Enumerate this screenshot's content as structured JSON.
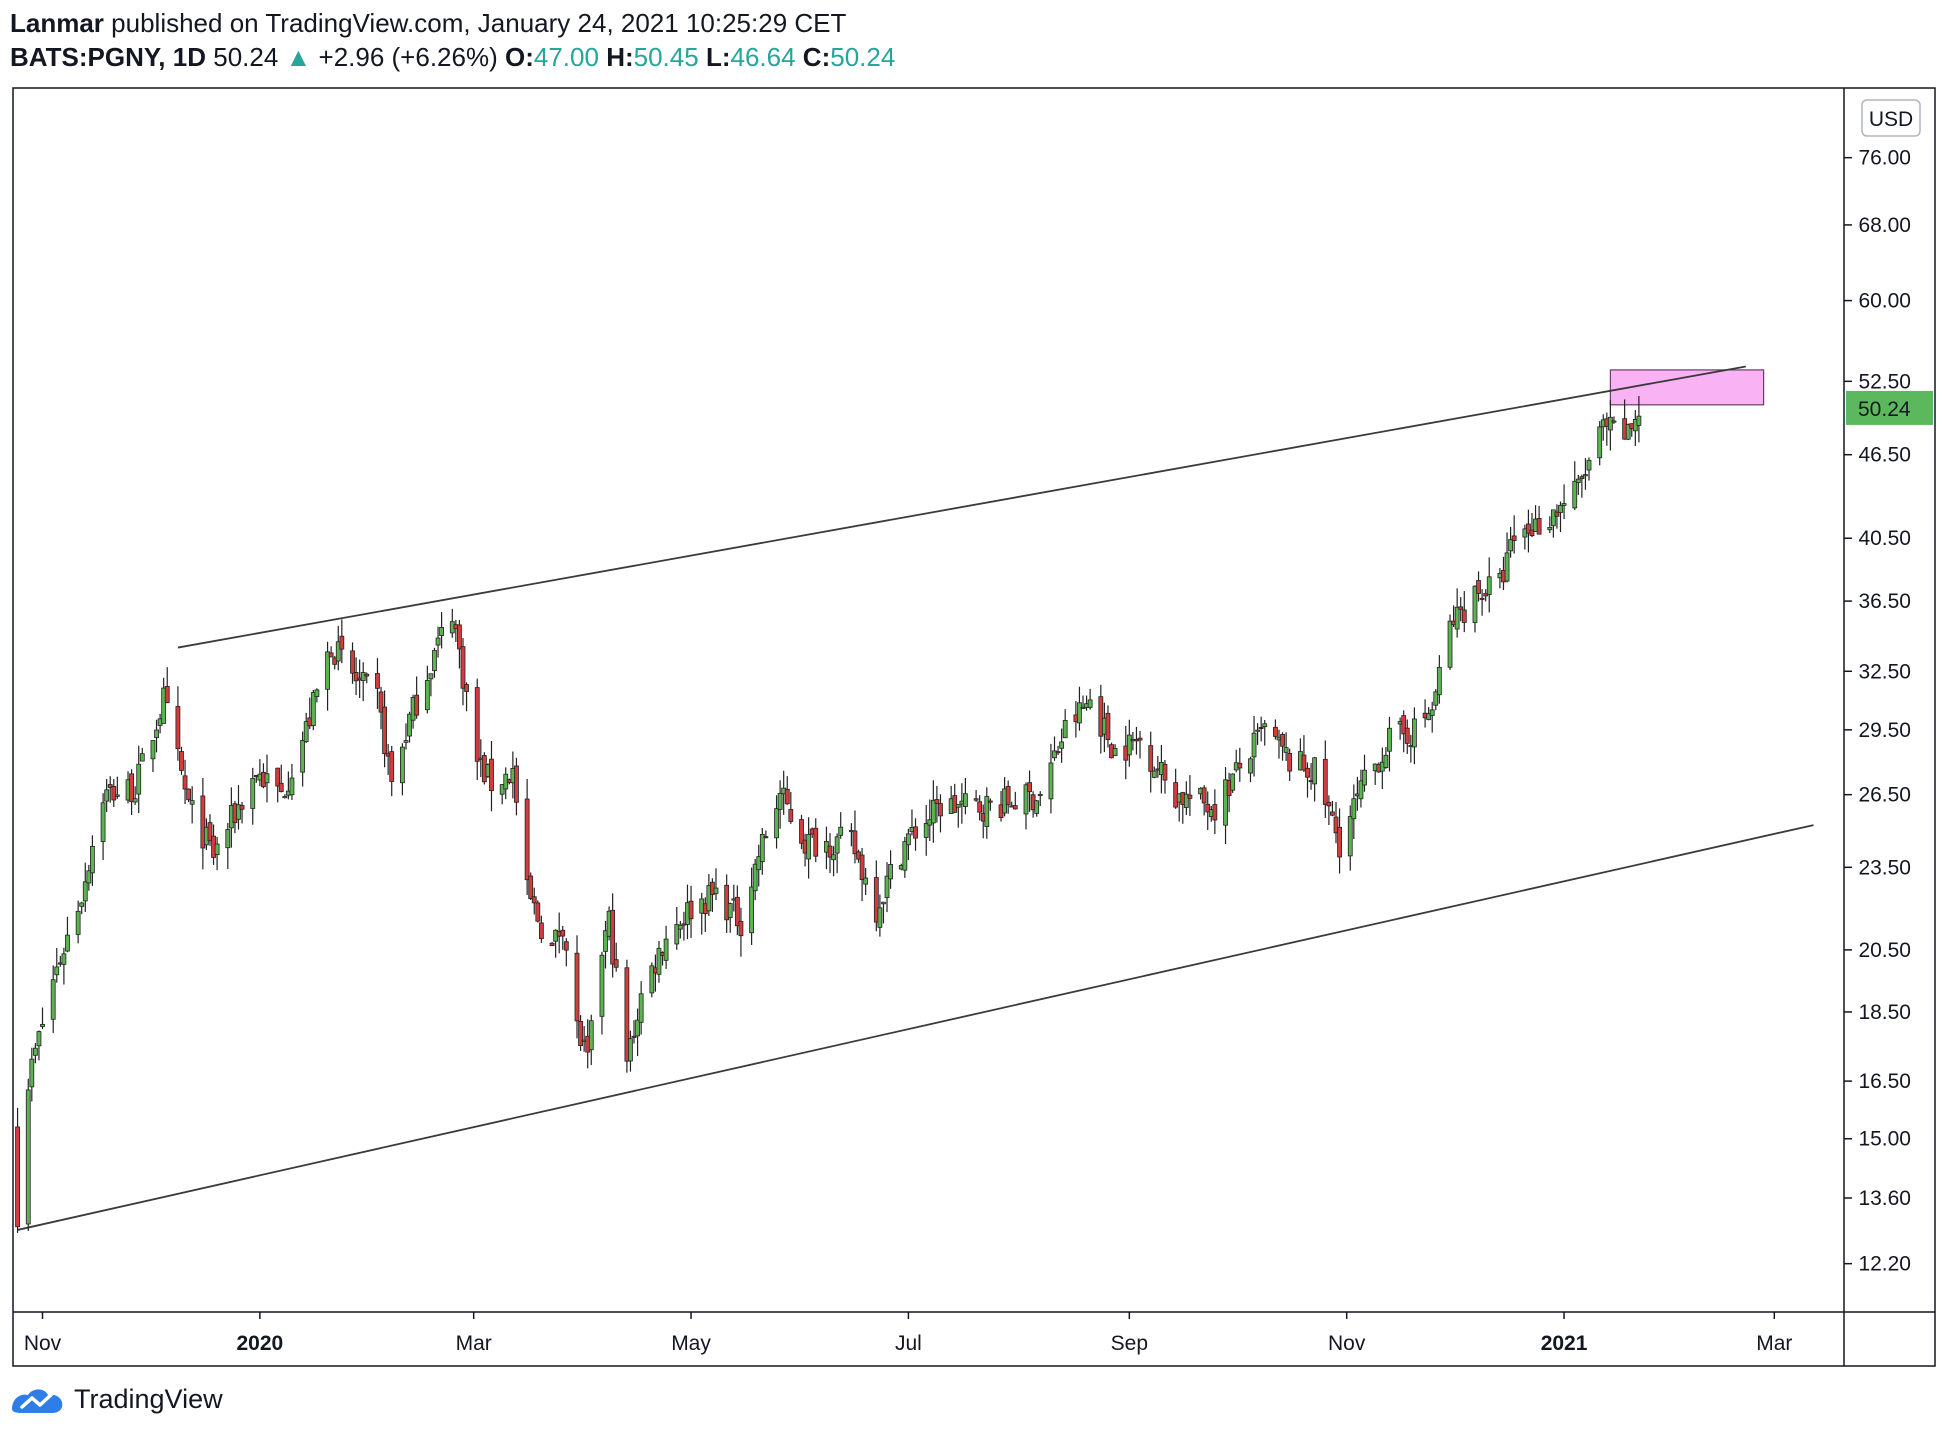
{
  "header": {
    "author": "Lanmar",
    "published_text": "published on TradingView.com, January 24, 2021 10:25:29 CET",
    "symbol": "BATS:PGNY, 1D",
    "last": "50.24",
    "change": "+2.96 (+6.26%)",
    "o_label": "O:",
    "o_value": "47.00",
    "h_label": "H:",
    "h_value": "50.45",
    "l_label": "L:",
    "l_value": "46.64",
    "c_label": "C:",
    "c_value": "50.24"
  },
  "footer": {
    "brand": "TradingView"
  },
  "colors": {
    "up": "#26a69a",
    "candle_up": "#5bb450",
    "candle_down": "#d33c3c",
    "price_tag": "#5cb85c",
    "zone": "#f9b3f5"
  },
  "icons": [
    "arrow-up-icon",
    "tradingview-logo-icon"
  ],
  "chart_data": {
    "type": "candlestick",
    "currency": "USD",
    "scale": "log",
    "ylim": [
      11.3,
      85
    ],
    "last_price": "50.24",
    "y_ticks": [
      "76.00",
      "68.00",
      "60.00",
      "52.50",
      "46.50",
      "40.50",
      "36.50",
      "32.50",
      "29.50",
      "26.50",
      "23.50",
      "20.50",
      "18.50",
      "16.50",
      "15.00",
      "13.60",
      "12.20"
    ],
    "x_ticks": [
      {
        "label": "Nov",
        "date": "2019-11-01",
        "bold": false
      },
      {
        "label": "2020",
        "date": "2020-01-01",
        "bold": true
      },
      {
        "label": "Mar",
        "date": "2020-03-01",
        "bold": false
      },
      {
        "label": "May",
        "date": "2020-05-01",
        "bold": false
      },
      {
        "label": "Jul",
        "date": "2020-07-01",
        "bold": false
      },
      {
        "label": "Sep",
        "date": "2020-09-01",
        "bold": false
      },
      {
        "label": "Nov",
        "date": "2020-11-01",
        "bold": false
      },
      {
        "label": "2021",
        "date": "2021-01-01",
        "bold": true
      },
      {
        "label": "Mar",
        "date": "2021-03-01",
        "bold": false
      }
    ],
    "xlim": [
      "2019-10-24",
      "2021-03-20"
    ],
    "path_points": [
      [
        "2019-10-25",
        13.3
      ],
      [
        "2019-10-28",
        16.5
      ],
      [
        "2019-11-04",
        19.5
      ],
      [
        "2019-11-12",
        22.5
      ],
      [
        "2019-11-18",
        26.5
      ],
      [
        "2019-11-27",
        26.8
      ],
      [
        "2019-12-05",
        31.0
      ],
      [
        "2019-12-12",
        26.0
      ],
      [
        "2019-12-19",
        24.0
      ],
      [
        "2019-12-31",
        27.5
      ],
      [
        "2020-01-07",
        26.5
      ],
      [
        "2020-01-14",
        29.5
      ],
      [
        "2020-01-21",
        34.0
      ],
      [
        "2020-01-28",
        32.0
      ],
      [
        "2020-02-03",
        31.0
      ],
      [
        "2020-02-07",
        27.0
      ],
      [
        "2020-02-12",
        30.0
      ],
      [
        "2020-02-18",
        33.0
      ],
      [
        "2020-02-24",
        36.0
      ],
      [
        "2020-03-02",
        28.0
      ],
      [
        "2020-03-06",
        27.0
      ],
      [
        "2020-03-12",
        27.5
      ],
      [
        "2020-03-16",
        22.5
      ],
      [
        "2020-03-23",
        20.5
      ],
      [
        "2020-03-26",
        21.5
      ],
      [
        "2020-03-30",
        18.0
      ],
      [
        "2020-04-02",
        17.0
      ],
      [
        "2020-04-06",
        20.5
      ],
      [
        "2020-04-08",
        21.5
      ],
      [
        "2020-04-13",
        17.0
      ],
      [
        "2020-04-17",
        19.0
      ],
      [
        "2020-04-24",
        21.0
      ],
      [
        "2020-05-01",
        22.0
      ],
      [
        "2020-05-08",
        22.5
      ],
      [
        "2020-05-15",
        21.5
      ],
      [
        "2020-05-20",
        24.0
      ],
      [
        "2020-05-26",
        26.5
      ],
      [
        "2020-06-02",
        24.5
      ],
      [
        "2020-06-15",
        24.5
      ],
      [
        "2020-06-22",
        22.0
      ],
      [
        "2020-06-30",
        24.5
      ],
      [
        "2020-07-10",
        26.0
      ],
      [
        "2020-07-24",
        26.0
      ],
      [
        "2020-08-07",
        26.5
      ],
      [
        "2020-08-14",
        29.5
      ],
      [
        "2020-08-21",
        31.0
      ],
      [
        "2020-08-28",
        28.5
      ],
      [
        "2020-09-04",
        29.0
      ],
      [
        "2020-09-14",
        26.5
      ],
      [
        "2020-09-25",
        26.0
      ],
      [
        "2020-10-09",
        29.5
      ],
      [
        "2020-10-16",
        28.0
      ],
      [
        "2020-10-23",
        27.5
      ],
      [
        "2020-10-30",
        24.5
      ],
      [
        "2020-11-06",
        27.0
      ],
      [
        "2020-11-13",
        29.0
      ],
      [
        "2020-11-20",
        29.5
      ],
      [
        "2020-11-25",
        30.5
      ],
      [
        "2020-11-30",
        35.0
      ],
      [
        "2020-12-07",
        37.0
      ],
      [
        "2020-12-14",
        37.5
      ],
      [
        "2020-12-18",
        40.5
      ],
      [
        "2020-12-28",
        42.0
      ],
      [
        "2021-01-05",
        44.0
      ],
      [
        "2021-01-12",
        48.5
      ],
      [
        "2021-01-19",
        48.0
      ],
      [
        "2021-01-22",
        50.24
      ]
    ],
    "trendlines": [
      {
        "from": [
          "2019-12-09",
          33.8
        ],
        "to": [
          "2021-02-21",
          53.8
        ]
      },
      {
        "from": [
          "2019-10-25",
          12.9
        ],
        "to": [
          "2021-03-12",
          25.2
        ]
      }
    ],
    "zone": {
      "from": "2021-01-14",
      "to": "2021-02-26",
      "low": 50.5,
      "high": 53.5
    }
  }
}
